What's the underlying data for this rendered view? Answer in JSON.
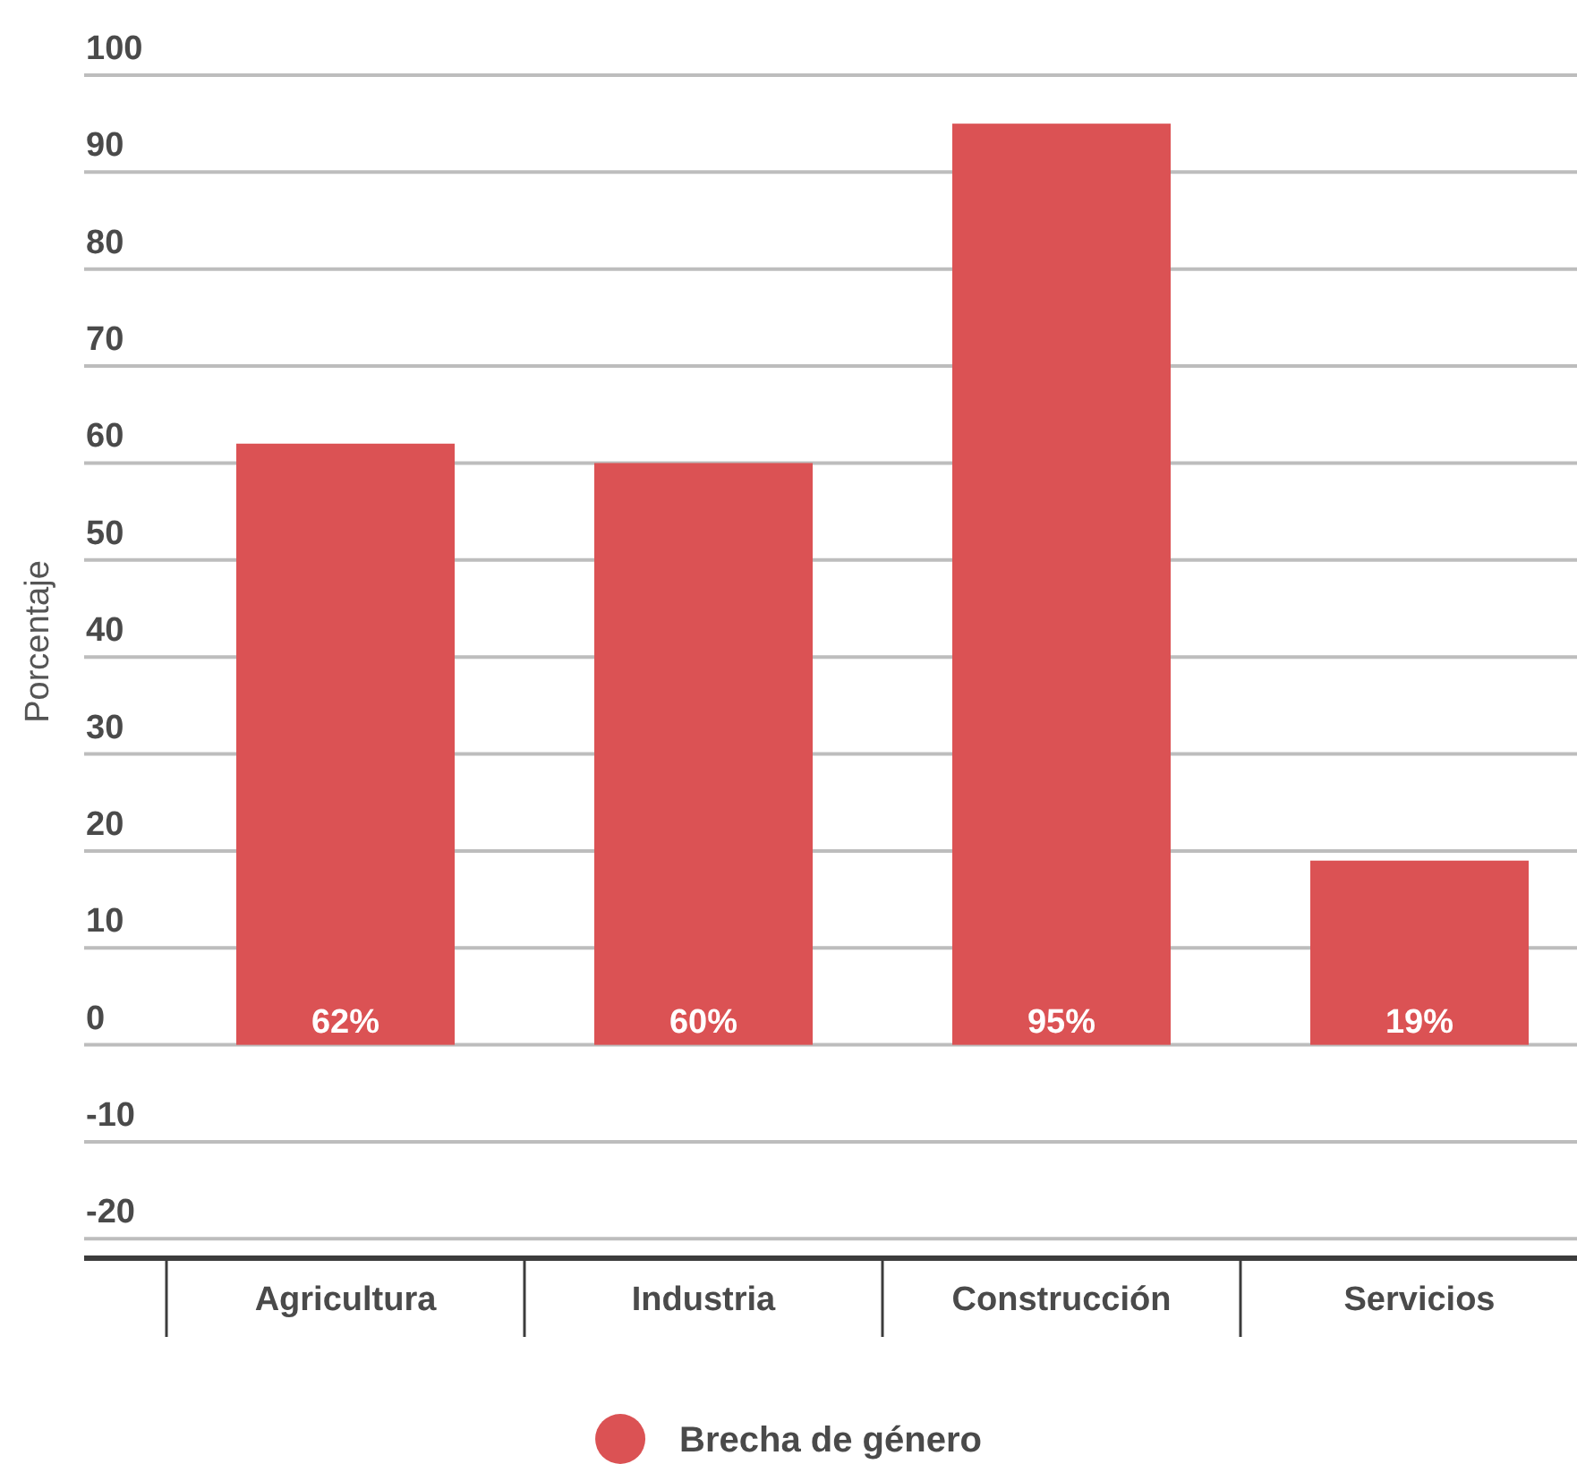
{
  "chart_data": {
    "type": "bar",
    "ylabel": "Porcentaje",
    "categories": [
      "Agricultura",
      "Industria",
      "Construcción",
      "Servicios"
    ],
    "series": [
      {
        "name": "Brecha de género",
        "color": "#db5254",
        "values": [
          62,
          60,
          95,
          19
        ],
        "value_labels": [
          "62%",
          "60%",
          "95%",
          "19%"
        ]
      }
    ],
    "ylim": [
      -22,
      100
    ],
    "yticks": [
      -20,
      -10,
      0,
      10,
      20,
      30,
      40,
      50,
      60,
      70,
      80,
      90,
      100
    ],
    "grid": "y",
    "legend": "bottom"
  }
}
